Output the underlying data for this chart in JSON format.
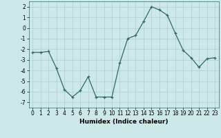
{
  "x": [
    0,
    1,
    2,
    3,
    4,
    5,
    6,
    7,
    8,
    9,
    10,
    11,
    12,
    13,
    14,
    15,
    16,
    17,
    18,
    19,
    20,
    21,
    22,
    23
  ],
  "y": [
    -2.3,
    -2.3,
    -2.2,
    -3.8,
    -5.8,
    -6.5,
    -5.9,
    -4.6,
    -6.5,
    -6.5,
    -6.5,
    -3.3,
    -1.0,
    -0.7,
    0.6,
    2.0,
    1.7,
    1.2,
    -0.5,
    -2.1,
    -2.8,
    -3.7,
    -2.9,
    -2.8
  ],
  "xlabel": "Humidex (Indice chaleur)",
  "ylim": [
    -7.5,
    2.5
  ],
  "xlim": [
    -0.5,
    23.5
  ],
  "yticks": [
    -7,
    -6,
    -5,
    -4,
    -3,
    -2,
    -1,
    0,
    1,
    2
  ],
  "xticks": [
    0,
    1,
    2,
    3,
    4,
    5,
    6,
    7,
    8,
    9,
    10,
    11,
    12,
    13,
    14,
    15,
    16,
    17,
    18,
    19,
    20,
    21,
    22,
    23
  ],
  "line_color": "#2e6b5e",
  "bg_color": "#cce8e8",
  "grid_color": "#b0cccc",
  "label_fontsize": 6.5,
  "tick_fontsize": 5.5
}
